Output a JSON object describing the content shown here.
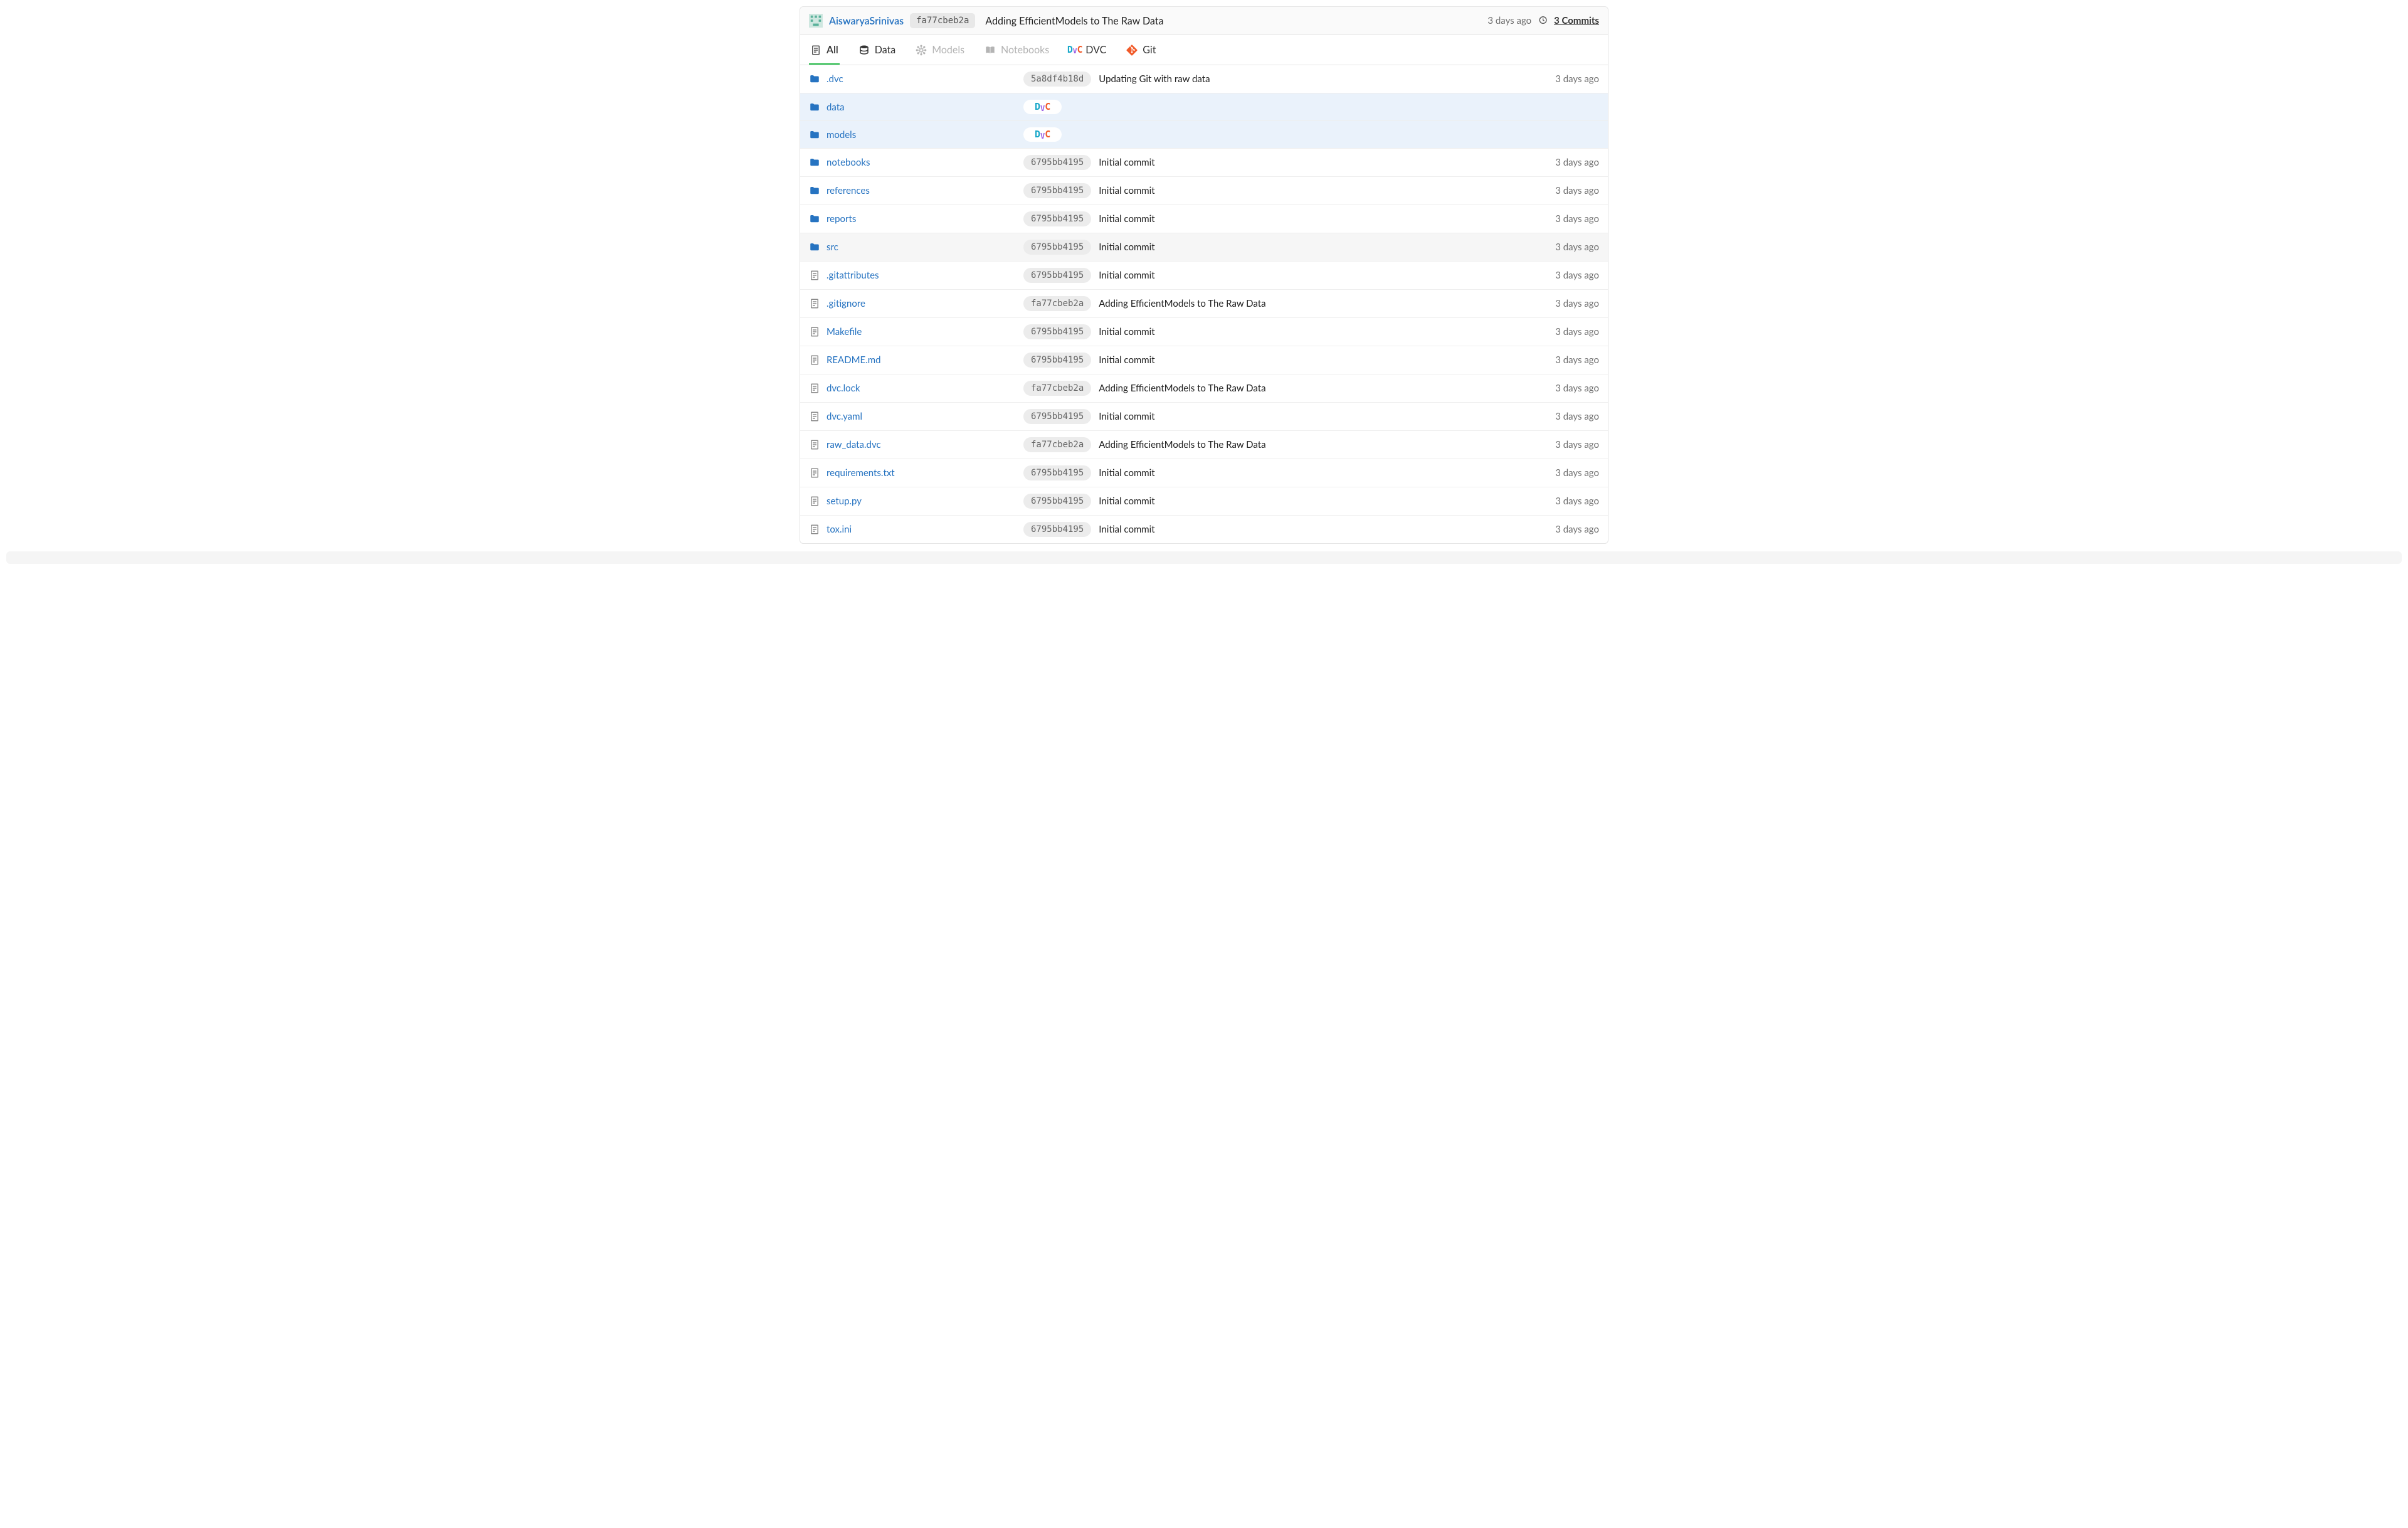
{
  "colors": {
    "link": "#2673c1",
    "active_tab_border": "#21ba45",
    "muted": "#707070",
    "disabled": "#b4b4b4",
    "sha_bg": "#ececec",
    "dvc_row_bg": "#eaf2fb",
    "folder_icon": "#2673c1",
    "file_icon": "#8b8b8b",
    "git_orange": "#f15a29"
  },
  "header": {
    "author": "AiswaryaSrinivas",
    "sha": "fa77cbeb2a",
    "message": "Adding EfficientModels to The Raw Data",
    "time": "3 days ago",
    "commits_label": "3 Commits"
  },
  "tabs": [
    {
      "id": "all",
      "label": "All",
      "icon": "file-icon",
      "active": true
    },
    {
      "id": "data",
      "label": "Data",
      "icon": "database-icon",
      "active": false
    },
    {
      "id": "models",
      "label": "Models",
      "icon": "model-icon",
      "active": false,
      "disabled": true
    },
    {
      "id": "notebooks",
      "label": "Notebooks",
      "icon": "book-icon",
      "active": false,
      "disabled": true
    },
    {
      "id": "dvc",
      "label": "DVC",
      "icon": "dvc-icon",
      "active": false
    },
    {
      "id": "git",
      "label": "Git",
      "icon": "git-icon",
      "active": false
    }
  ],
  "files": [
    {
      "type": "folder",
      "name": ".dvc",
      "sha": "5a8df4b18d",
      "msg": "Updating Git with raw data",
      "time": "3 days ago"
    },
    {
      "type": "folder",
      "name": "data",
      "dvc_badge": true,
      "row_variant": "dvc"
    },
    {
      "type": "folder",
      "name": "models",
      "dvc_badge": true,
      "row_variant": "dvc"
    },
    {
      "type": "folder",
      "name": "notebooks",
      "sha": "6795bb4195",
      "msg": "Initial commit",
      "time": "3 days ago"
    },
    {
      "type": "folder",
      "name": "references",
      "sha": "6795bb4195",
      "msg": "Initial commit",
      "time": "3 days ago"
    },
    {
      "type": "folder",
      "name": "reports",
      "sha": "6795bb4195",
      "msg": "Initial commit",
      "time": "3 days ago"
    },
    {
      "type": "folder",
      "name": "src",
      "sha": "6795bb4195",
      "msg": "Initial commit",
      "time": "3 days ago",
      "row_variant": "src"
    },
    {
      "type": "file",
      "name": ".gitattributes",
      "sha": "6795bb4195",
      "msg": "Initial commit",
      "time": "3 days ago"
    },
    {
      "type": "file",
      "name": ".gitignore",
      "sha": "fa77cbeb2a",
      "msg": "Adding EfficientModels to The Raw Data",
      "time": "3 days ago"
    },
    {
      "type": "file",
      "name": "Makefile",
      "sha": "6795bb4195",
      "msg": "Initial commit",
      "time": "3 days ago"
    },
    {
      "type": "file",
      "name": "README.md",
      "sha": "6795bb4195",
      "msg": "Initial commit",
      "time": "3 days ago"
    },
    {
      "type": "file",
      "name": "dvc.lock",
      "sha": "fa77cbeb2a",
      "msg": "Adding EfficientModels to The Raw Data",
      "time": "3 days ago"
    },
    {
      "type": "file",
      "name": "dvc.yaml",
      "sha": "6795bb4195",
      "msg": "Initial commit",
      "time": "3 days ago"
    },
    {
      "type": "file",
      "name": "raw_data.dvc",
      "sha": "fa77cbeb2a",
      "msg": "Adding EfficientModels to The Raw Data",
      "time": "3 days ago"
    },
    {
      "type": "file",
      "name": "requirements.txt",
      "sha": "6795bb4195",
      "msg": "Initial commit",
      "time": "3 days ago"
    },
    {
      "type": "file",
      "name": "setup.py",
      "sha": "6795bb4195",
      "msg": "Initial commit",
      "time": "3 days ago"
    },
    {
      "type": "file",
      "name": "tox.ini",
      "sha": "6795bb4195",
      "msg": "Initial commit",
      "time": "3 days ago"
    }
  ]
}
